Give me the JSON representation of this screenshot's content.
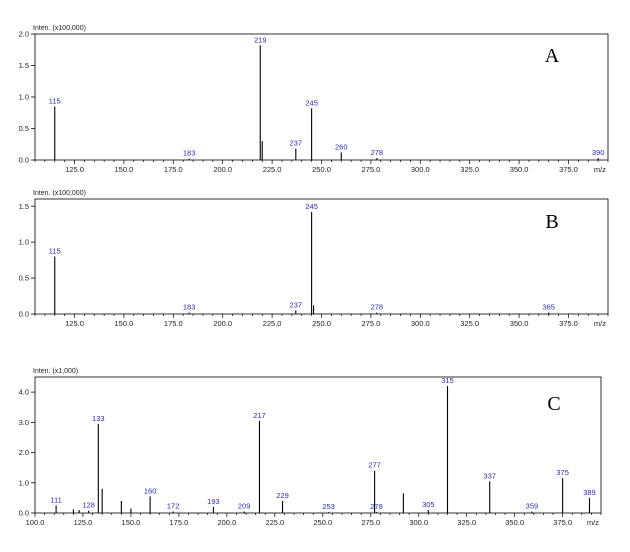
{
  "chart_data": [
    {
      "type": "bar",
      "panel_label": "A",
      "intensity_label": "Inten. (x100,000)",
      "x_unit_label": "m/z",
      "xlim": [
        105,
        395
      ],
      "ylim": [
        0,
        2.0
      ],
      "x_ticks": [
        "125.0",
        "150.0",
        "175.0",
        "200.0",
        "225.0",
        "250.0",
        "275.0",
        "300.0",
        "325.0",
        "350.0",
        "375.0"
      ],
      "y_ticks": [
        "0.0",
        "0.5",
        "1.0",
        "1.5",
        "2.0"
      ],
      "peaks": [
        {
          "mz": 115,
          "intensity": 0.85,
          "label": "115"
        },
        {
          "mz": 183,
          "intensity": 0.02,
          "label": "183"
        },
        {
          "mz": 219,
          "intensity": 1.82,
          "label": "219"
        },
        {
          "mz": 220,
          "intensity": 0.3,
          "label": ""
        },
        {
          "mz": 237,
          "intensity": 0.18,
          "label": "237"
        },
        {
          "mz": 245,
          "intensity": 0.82,
          "label": "245"
        },
        {
          "mz": 260,
          "intensity": 0.12,
          "label": "260"
        },
        {
          "mz": 278,
          "intensity": 0.03,
          "label": "278"
        },
        {
          "mz": 390,
          "intensity": 0.03,
          "label": "390"
        }
      ]
    },
    {
      "type": "bar",
      "panel_label": "B",
      "intensity_label": "Inten. (x100,000)",
      "x_unit_label": "m/z",
      "xlim": [
        105,
        395
      ],
      "ylim": [
        0,
        1.6
      ],
      "x_ticks": [
        "125.0",
        "150.0",
        "175.0",
        "200.0",
        "225.0",
        "250.0",
        "275.0",
        "300.0",
        "325.0",
        "350.0",
        "375.0"
      ],
      "y_ticks": [
        "0.0",
        "0.5",
        "1.0",
        "1.5"
      ],
      "peaks": [
        {
          "mz": 115,
          "intensity": 0.8,
          "label": "115"
        },
        {
          "mz": 183,
          "intensity": 0.02,
          "label": "183"
        },
        {
          "mz": 237,
          "intensity": 0.05,
          "label": "237"
        },
        {
          "mz": 245,
          "intensity": 1.42,
          "label": "245"
        },
        {
          "mz": 246,
          "intensity": 0.12,
          "label": ""
        },
        {
          "mz": 278,
          "intensity": 0.02,
          "label": "278"
        },
        {
          "mz": 365,
          "intensity": 0.02,
          "label": "365"
        }
      ]
    },
    {
      "type": "bar",
      "panel_label": "C",
      "intensity_label": "Inten. (x1,000)",
      "x_unit_label": "m/z",
      "xlim": [
        100,
        395
      ],
      "ylim": [
        0,
        4.5
      ],
      "x_ticks": [
        "100.0",
        "125.0",
        "150.0",
        "175.0",
        "200.0",
        "225.0",
        "250.0",
        "275.0",
        "300.0",
        "325.0",
        "350.0",
        "375.0"
      ],
      "y_ticks": [
        "0.0",
        "1.0",
        "2.0",
        "3.0",
        "4.0"
      ],
      "peaks": [
        {
          "mz": 111,
          "intensity": 0.25,
          "label": "111"
        },
        {
          "mz": 120,
          "intensity": 0.12,
          "label": ""
        },
        {
          "mz": 123,
          "intensity": 0.1,
          "label": ""
        },
        {
          "mz": 128,
          "intensity": 0.08,
          "label": "128"
        },
        {
          "mz": 133,
          "intensity": 2.95,
          "label": "133"
        },
        {
          "mz": 135,
          "intensity": 0.8,
          "label": ""
        },
        {
          "mz": 145,
          "intensity": 0.4,
          "label": ""
        },
        {
          "mz": 150,
          "intensity": 0.15,
          "label": ""
        },
        {
          "mz": 160,
          "intensity": 0.55,
          "label": "160"
        },
        {
          "mz": 172,
          "intensity": 0.05,
          "label": "172"
        },
        {
          "mz": 193,
          "intensity": 0.2,
          "label": "193"
        },
        {
          "mz": 209,
          "intensity": 0.05,
          "label": "209"
        },
        {
          "mz": 217,
          "intensity": 3.05,
          "label": "217"
        },
        {
          "mz": 229,
          "intensity": 0.4,
          "label": "229"
        },
        {
          "mz": 253,
          "intensity": 0.03,
          "label": "253"
        },
        {
          "mz": 277,
          "intensity": 1.4,
          "label": "277"
        },
        {
          "mz": 278,
          "intensity": 0.03,
          "label": "278"
        },
        {
          "mz": 292,
          "intensity": 0.65,
          "label": ""
        },
        {
          "mz": 305,
          "intensity": 0.1,
          "label": "305"
        },
        {
          "mz": 315,
          "intensity": 4.2,
          "label": "315"
        },
        {
          "mz": 337,
          "intensity": 1.05,
          "label": "337"
        },
        {
          "mz": 359,
          "intensity": 0.05,
          "label": "359"
        },
        {
          "mz": 375,
          "intensity": 1.15,
          "label": "375"
        },
        {
          "mz": 389,
          "intensity": 0.5,
          "label": "389"
        }
      ]
    }
  ]
}
